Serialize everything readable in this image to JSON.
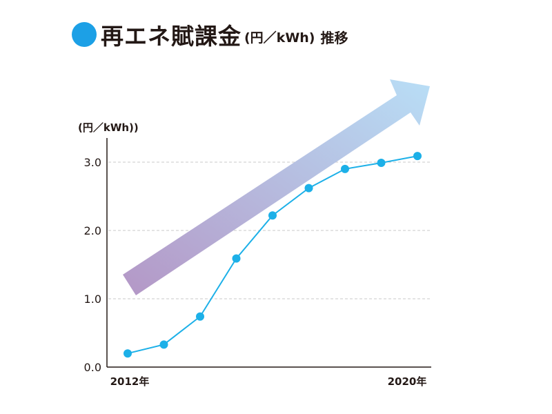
{
  "title": {
    "main": "再エネ賦課金",
    "unit": "(円／kWh)",
    "suffix": "推移",
    "bullet_color": "#1ca0e6"
  },
  "chart_data": {
    "type": "line",
    "title": "再エネ賦課金(円／kWh)推移",
    "ylabel": "(円／kWh))",
    "x": [
      2012,
      2013,
      2014,
      2015,
      2016,
      2017,
      2018,
      2019,
      2020
    ],
    "x_tick_labels": [
      "2012年",
      "2020年"
    ],
    "y_ticks": [
      "0.0",
      "1.0",
      "2.0",
      "3.0"
    ],
    "ylim": [
      0,
      3.3
    ],
    "grid": "horizontal dashed",
    "series": [
      {
        "values": [
          0.2,
          0.33,
          0.74,
          1.59,
          2.22,
          2.62,
          2.9,
          2.99,
          3.09
        ],
        "color": "#1cb0e8"
      }
    ],
    "annotations": [
      {
        "type": "trend-arrow",
        "direction": "up-right",
        "colors": [
          "#b497c6",
          "#b8def6"
        ]
      }
    ]
  }
}
